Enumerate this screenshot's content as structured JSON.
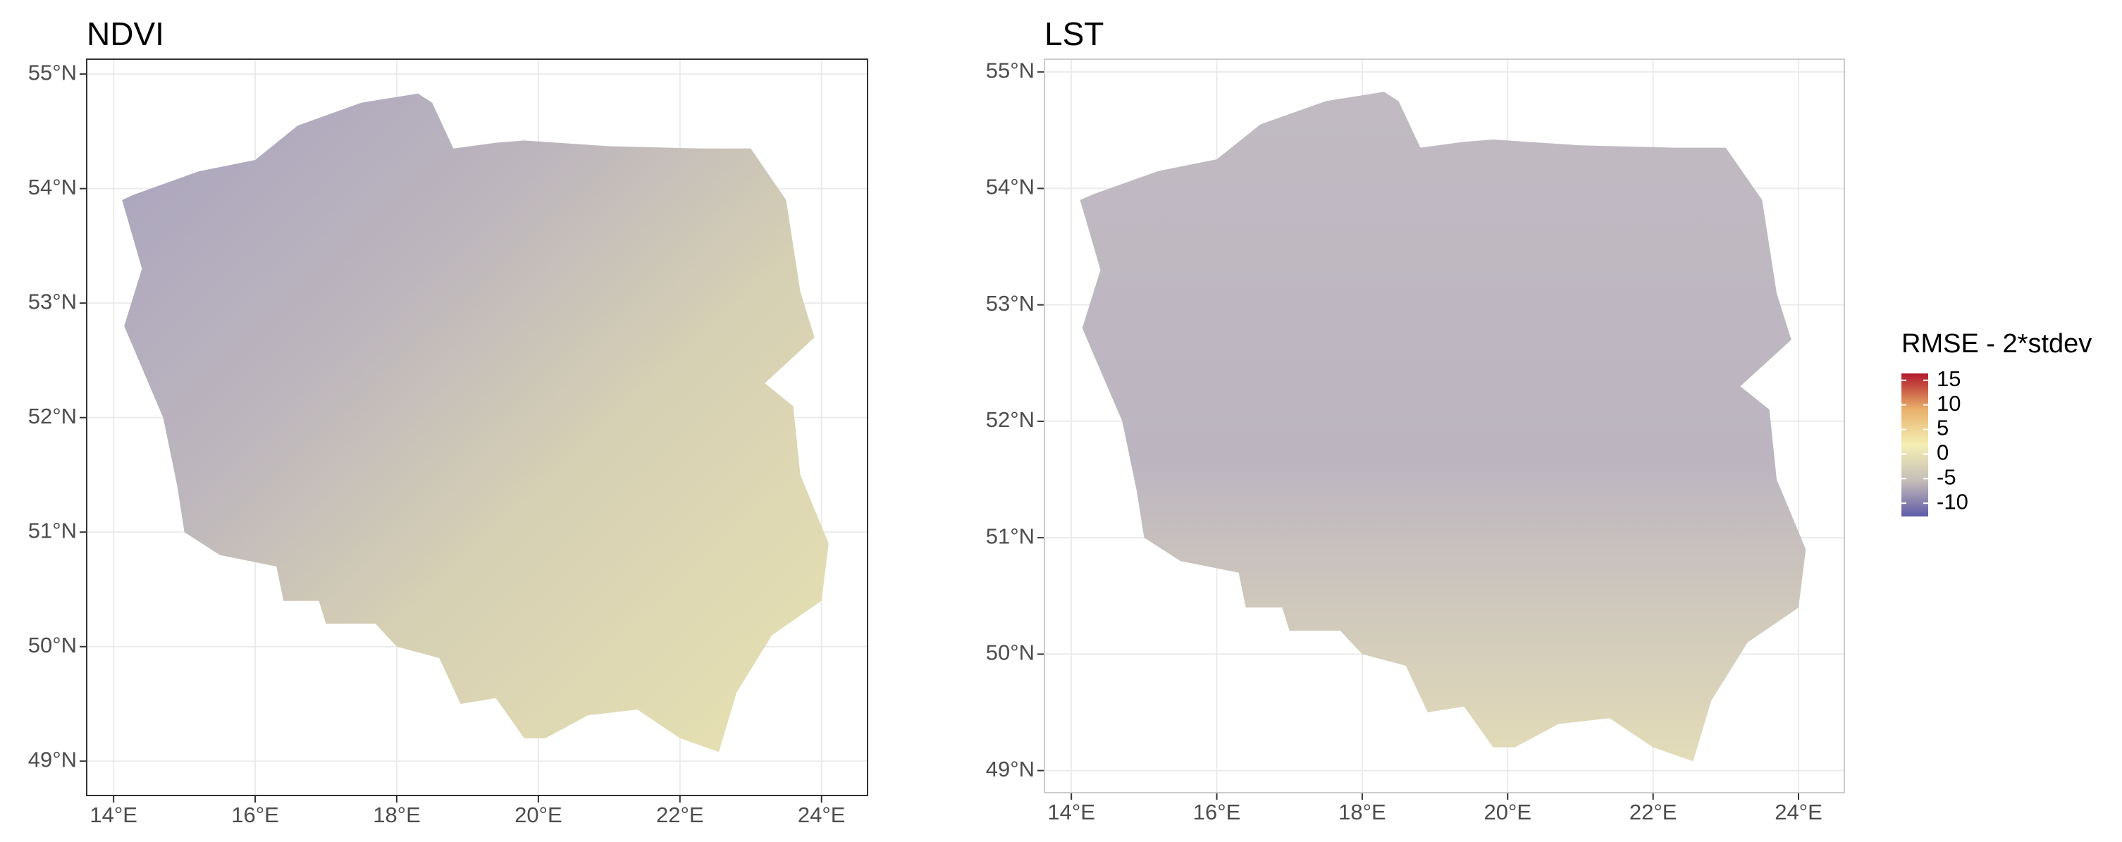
{
  "panels": [
    {
      "title": "NDVI",
      "xlim": [
        13.62,
        24.65
      ],
      "ylim": [
        48.7,
        55.13
      ],
      "xticks": [
        {
          "value": 14,
          "label": "14°E"
        },
        {
          "value": 16,
          "label": "16°E"
        },
        {
          "value": 18,
          "label": "18°E"
        },
        {
          "value": 20,
          "label": "20°E"
        },
        {
          "value": 22,
          "label": "22°E"
        },
        {
          "value": 24,
          "label": "24°E"
        }
      ],
      "yticks": [
        {
          "value": 49,
          "label": "49°N"
        },
        {
          "value": 50,
          "label": "50°N"
        },
        {
          "value": 51,
          "label": "51°N"
        },
        {
          "value": 52,
          "label": "52°N"
        },
        {
          "value": 53,
          "label": "53°N"
        },
        {
          "value": 54,
          "label": "54°N"
        },
        {
          "value": 55,
          "label": "55°N"
        }
      ]
    },
    {
      "title": "LST",
      "xlim": [
        13.63,
        24.63
      ],
      "ylim": [
        48.81,
        55.11
      ],
      "xticks": [
        {
          "value": 14,
          "label": "14°E"
        },
        {
          "value": 16,
          "label": "16°E"
        },
        {
          "value": 18,
          "label": "18°E"
        },
        {
          "value": 20,
          "label": "20°E"
        },
        {
          "value": 22,
          "label": "22°E"
        },
        {
          "value": 24,
          "label": "24°E"
        }
      ],
      "yticks": [
        {
          "value": 49,
          "label": "49°N"
        },
        {
          "value": 50,
          "label": "50°N"
        },
        {
          "value": 51,
          "label": "51°N"
        },
        {
          "value": 52,
          "label": "52°N"
        },
        {
          "value": 53,
          "label": "53°N"
        },
        {
          "value": 54,
          "label": "54°N"
        },
        {
          "value": 55,
          "label": "55°N"
        }
      ]
    }
  ],
  "legend": {
    "title": "RMSE - 2*stdev",
    "lim": [
      -12.7,
      16.4
    ],
    "ticks": [
      15,
      10,
      5,
      0,
      -5,
      -10
    ],
    "colors": [
      "#5e5aa8",
      "#c5bdb8",
      "#f4efb4",
      "#e8b06a",
      "#b2182b"
    ]
  }
}
